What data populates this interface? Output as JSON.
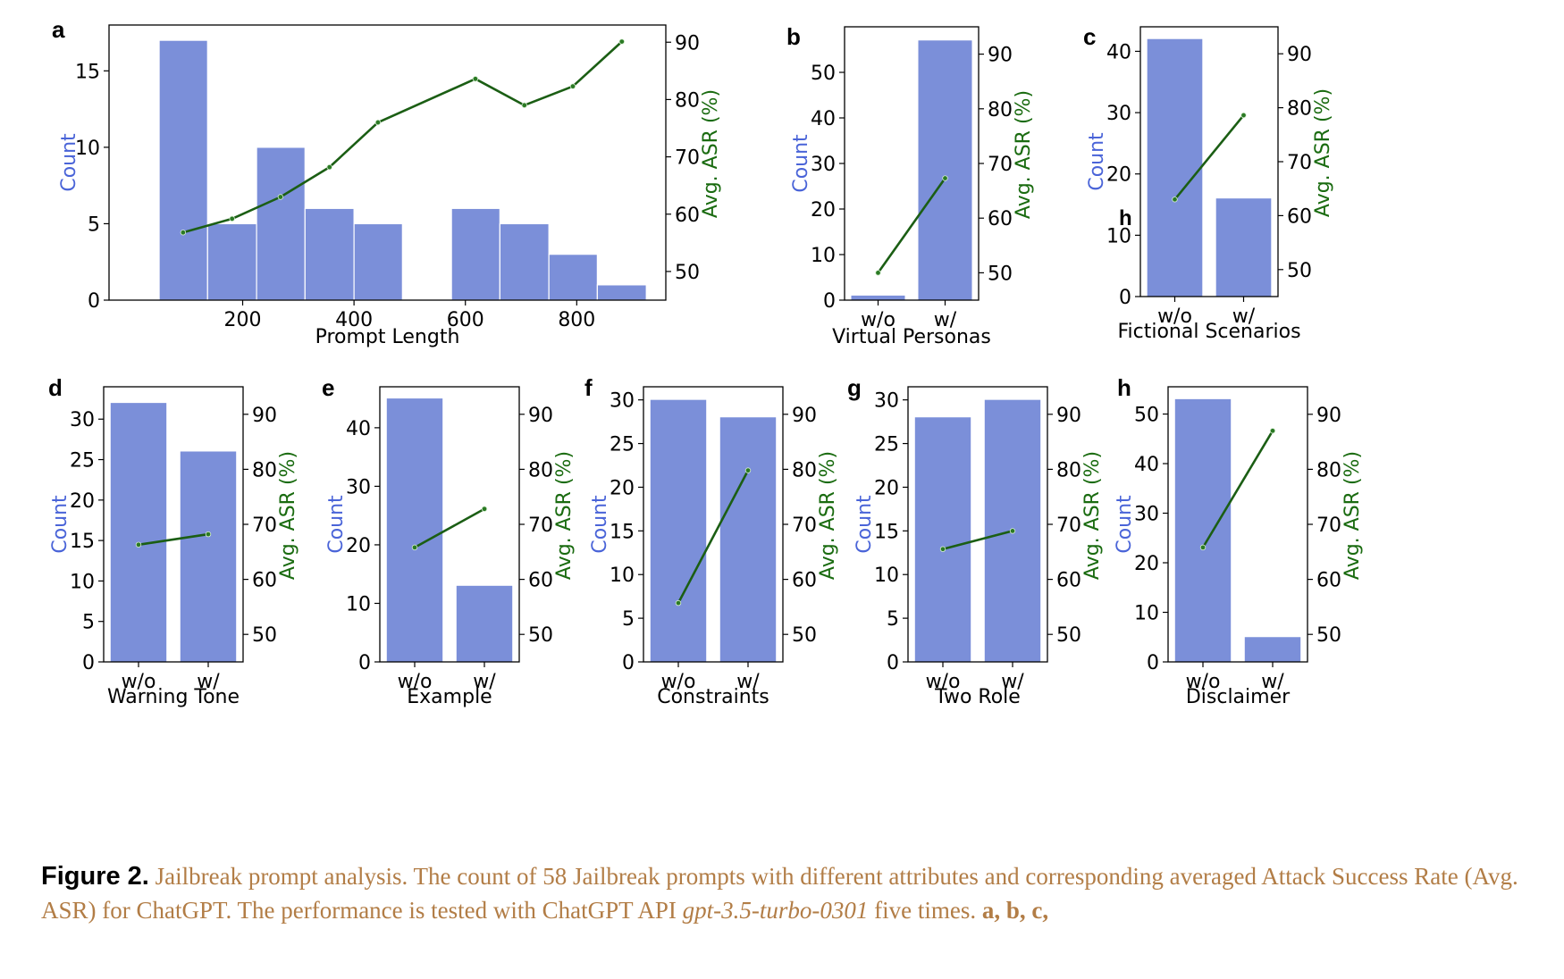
{
  "colors": {
    "bar": "#7b8fd9",
    "bar_edge": "#ffffff",
    "line": "#1b5e14",
    "marker": "#2b7a24",
    "count_label": "#4a64d8",
    "asr_label": "#1a6b10"
  },
  "chart_data": [
    {
      "id": "a",
      "panel_label": "a",
      "type": "bar+line",
      "xlabel": "Prompt Length",
      "ylabel_left": "Count",
      "ylabel_right": "Avg. ASR (%)",
      "x_range": [
        -40,
        960
      ],
      "xticks": [
        200,
        400,
        600,
        800
      ],
      "y_left_range": [
        0,
        18
      ],
      "y_left_ticks": [
        0,
        5,
        10,
        15
      ],
      "y_right_range": [
        45,
        93
      ],
      "y_right_ticks": [
        50,
        60,
        70,
        80,
        90
      ],
      "bins": [
        {
          "start": 50,
          "end": 137,
          "count": 17
        },
        {
          "start": 137,
          "end": 225,
          "count": 5
        },
        {
          "start": 225,
          "end": 312,
          "count": 10
        },
        {
          "start": 312,
          "end": 400,
          "count": 6
        },
        {
          "start": 400,
          "end": 487,
          "count": 5
        },
        {
          "start": 487,
          "end": 575,
          "count": 0
        },
        {
          "start": 575,
          "end": 662,
          "count": 6
        },
        {
          "start": 662,
          "end": 750,
          "count": 5
        },
        {
          "start": 750,
          "end": 837,
          "count": 3
        },
        {
          "start": 837,
          "end": 925,
          "count": 1
        }
      ],
      "line": {
        "name": "Avg. ASR (%)",
        "x": [
          93,
          181,
          268,
          356,
          443,
          618,
          706,
          793,
          881
        ],
        "y": [
          56.8,
          59.2,
          63.0,
          68.2,
          76.0,
          83.6,
          79.0,
          82.3,
          90.1
        ]
      }
    },
    {
      "id": "b",
      "panel_label": "b",
      "type": "bar+line",
      "xlabel": "Virtual Personas",
      "ylabel_left": "Count",
      "ylabel_right": "Avg. ASR (%)",
      "categories": [
        "w/o",
        "w/"
      ],
      "values": [
        1,
        57
      ],
      "y_left_range": [
        0,
        60
      ],
      "y_left_ticks": [
        0,
        10,
        20,
        30,
        40,
        50
      ],
      "y_right_range": [
        45,
        95
      ],
      "y_right_ticks": [
        50,
        60,
        70,
        80,
        90
      ],
      "line": {
        "name": "Avg. ASR (%)",
        "y": [
          50.0,
          67.3
        ]
      }
    },
    {
      "id": "c",
      "panel_label": "c",
      "extra_label": "h",
      "type": "bar+line",
      "xlabel": "Fictional Scenarios",
      "ylabel_left": "Count",
      "ylabel_right": "Avg. ASR (%)",
      "categories": [
        "w/o",
        "w/"
      ],
      "values": [
        42,
        16
      ],
      "y_left_range": [
        0,
        44
      ],
      "y_left_ticks": [
        0,
        10,
        20,
        30,
        40
      ],
      "y_right_range": [
        45,
        95
      ],
      "y_right_ticks": [
        50,
        60,
        70,
        80,
        90
      ],
      "line": {
        "name": "Avg. ASR (%)",
        "y": [
          63.0,
          78.6
        ]
      }
    },
    {
      "id": "d",
      "panel_label": "d",
      "type": "bar+line",
      "xlabel": "Warning Tone",
      "ylabel_left": "Count",
      "ylabel_right": "Avg. ASR (%)",
      "categories": [
        "w/o",
        "w/"
      ],
      "values": [
        32,
        26
      ],
      "y_left_range": [
        0,
        34
      ],
      "y_left_ticks": [
        0,
        5,
        10,
        15,
        20,
        25,
        30
      ],
      "y_right_range": [
        45,
        95
      ],
      "y_right_ticks": [
        50,
        60,
        70,
        80,
        90
      ],
      "line": {
        "name": "Avg. ASR (%)",
        "y": [
          66.3,
          68.2
        ]
      }
    },
    {
      "id": "e",
      "panel_label": "e",
      "type": "bar+line",
      "xlabel": "Example",
      "ylabel_left": "Count",
      "ylabel_right": "Avg. ASR (%)",
      "categories": [
        "w/o",
        "w/"
      ],
      "values": [
        45,
        13
      ],
      "y_left_range": [
        0,
        47
      ],
      "y_left_ticks": [
        0,
        10,
        20,
        30,
        40
      ],
      "y_right_range": [
        45,
        95
      ],
      "y_right_ticks": [
        50,
        60,
        70,
        80,
        90
      ],
      "line": {
        "name": "Avg. ASR (%)",
        "y": [
          65.8,
          72.8
        ]
      }
    },
    {
      "id": "f",
      "panel_label": "f",
      "type": "bar+line",
      "xlabel": "Constraints",
      "ylabel_left": "Count",
      "ylabel_right": "Avg. ASR (%)",
      "categories": [
        "w/o",
        "w/"
      ],
      "values": [
        30,
        28
      ],
      "y_left_range": [
        0,
        31.5
      ],
      "y_left_ticks": [
        0,
        5,
        10,
        15,
        20,
        25,
        30
      ],
      "y_right_range": [
        45,
        95
      ],
      "y_right_ticks": [
        50,
        60,
        70,
        80,
        90
      ],
      "line": {
        "name": "Avg. ASR (%)",
        "y": [
          55.7,
          79.8
        ]
      }
    },
    {
      "id": "g",
      "panel_label": "g",
      "type": "bar+line",
      "xlabel": "Two Role",
      "ylabel_left": "Count",
      "ylabel_right": "Avg. ASR (%)",
      "categories": [
        "w/o",
        "w/"
      ],
      "values": [
        28,
        30
      ],
      "y_left_range": [
        0,
        31.5
      ],
      "y_left_ticks": [
        0,
        5,
        10,
        15,
        20,
        25,
        30
      ],
      "y_right_range": [
        45,
        95
      ],
      "y_right_ticks": [
        50,
        60,
        70,
        80,
        90
      ],
      "line": {
        "name": "Avg. ASR (%)",
        "y": [
          65.5,
          68.8
        ]
      }
    },
    {
      "id": "h",
      "panel_label": "h",
      "type": "bar+line",
      "xlabel": "Disclaimer",
      "ylabel_left": "Count",
      "ylabel_right": "Avg. ASR (%)",
      "categories": [
        "w/o",
        "w/"
      ],
      "values": [
        53,
        5
      ],
      "y_left_range": [
        0,
        55.5
      ],
      "y_left_ticks": [
        0,
        10,
        20,
        30,
        40,
        50
      ],
      "y_right_range": [
        45,
        95
      ],
      "y_right_ticks": [
        50,
        60,
        70,
        80,
        90
      ],
      "line": {
        "name": "Avg. ASR (%)",
        "y": [
          65.8,
          87.0
        ]
      }
    }
  ],
  "caption": {
    "label": "Figure 2.",
    "text_1": " Jailbreak prompt analysis. The count of 58 Jailbreak prompts with different attributes and corresponding averaged Attack Success Rate (Avg. ASR) for ChatGPT. The performance is tested with ChatGPT API ",
    "model": "gpt-3.5-turbo-0301",
    "text_2": " five times. ",
    "refs": "a, b, c,"
  }
}
